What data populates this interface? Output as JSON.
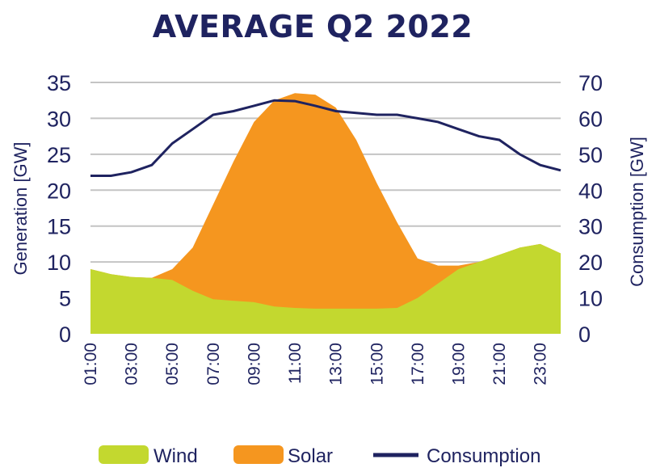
{
  "chart_data": {
    "type": "area",
    "title": "AVERAGE Q2 2022",
    "x": [
      "01:00",
      "02:00",
      "03:00",
      "04:00",
      "05:00",
      "06:00",
      "07:00",
      "08:00",
      "09:00",
      "10:00",
      "11:00",
      "12:00",
      "13:00",
      "14:00",
      "15:00",
      "16:00",
      "17:00",
      "18:00",
      "19:00",
      "20:00",
      "21:00",
      "22:00",
      "23:00",
      "24:00"
    ],
    "x_tick_labels": [
      "01:00",
      "03:00",
      "05:00",
      "07:00",
      "09:00",
      "11:00",
      "13:00",
      "15:00",
      "17:00",
      "19:00",
      "21:00",
      "23:00"
    ],
    "ylabel_left": "Generation [GW]",
    "ylabel_right": "Consumption [GW]",
    "ylim_left": [
      0,
      35
    ],
    "ylim_right": [
      0,
      70
    ],
    "yticks_left": [
      "0",
      "5",
      "10",
      "15",
      "20",
      "25",
      "30",
      "35"
    ],
    "yticks_right": [
      "0",
      "10",
      "20",
      "30",
      "40",
      "50",
      "60",
      "70"
    ],
    "grid": true,
    "legend_position": "bottom",
    "series": [
      {
        "name": "Wind",
        "kind": "area",
        "axis": "left",
        "color": "#c3d82f",
        "values": [
          9.0,
          8.3,
          7.9,
          7.8,
          7.5,
          6.0,
          4.8,
          4.6,
          4.4,
          3.8,
          3.6,
          3.5,
          3.5,
          3.5,
          3.5,
          3.6,
          5.0,
          7.0,
          9.0,
          10.0,
          11.0,
          12.0,
          12.5,
          11.2
        ]
      },
      {
        "name": "Solar",
        "kind": "area-stacked-on-wind",
        "axis": "left",
        "color": "#f5961f",
        "total_values": [
          9.0,
          8.3,
          7.9,
          7.8,
          9.0,
          12.0,
          18.0,
          24.0,
          29.5,
          32.5,
          33.5,
          33.3,
          31.5,
          27.0,
          21.0,
          15.5,
          10.5,
          9.5,
          9.5,
          10.0,
          11.0,
          12.0,
          12.5,
          11.2
        ]
      },
      {
        "name": "Consumption",
        "kind": "line",
        "axis": "right",
        "color": "#1f2360",
        "values": [
          44,
          44,
          45,
          47,
          53,
          57,
          61,
          62,
          63.5,
          65,
          64.8,
          63.5,
          62,
          61.5,
          61,
          61,
          60,
          59,
          57,
          55,
          54,
          50,
          47,
          45.5
        ]
      }
    ],
    "legend": [
      "Wind",
      "Solar",
      "Consumption"
    ]
  }
}
